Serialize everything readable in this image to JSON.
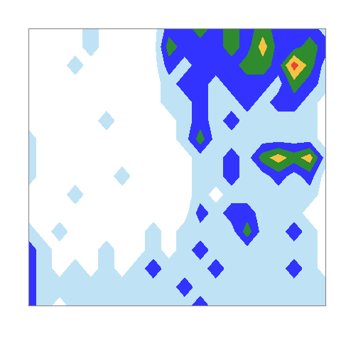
{
  "chart_data": {
    "type": "contour",
    "cells": [
      [
        0,
        0,
        0,
        0,
        1,
        0,
        0,
        0,
        0,
        2,
        2,
        3,
        2,
        3,
        2,
        3,
        2,
        2,
        2,
        1
      ],
      [
        0,
        0,
        0,
        0,
        1,
        0,
        0,
        0,
        0,
        3,
        2,
        2,
        2,
        3,
        2,
        4,
        2,
        2,
        3,
        2
      ],
      [
        0,
        0,
        0,
        1,
        0,
        0,
        0,
        0,
        0,
        2,
        1,
        2,
        2,
        2,
        3,
        3,
        2,
        5,
        3,
        1
      ],
      [
        0,
        0,
        0,
        0,
        0,
        0,
        0,
        0,
        0,
        1,
        2,
        2,
        1,
        2,
        2,
        2,
        1,
        3,
        2,
        1
      ],
      [
        0,
        0,
        0,
        0,
        0,
        0,
        0,
        0,
        0,
        1,
        1,
        2,
        1,
        1,
        2,
        1,
        2,
        2,
        1,
        0
      ],
      [
        0,
        0,
        0,
        0,
        0,
        1,
        0,
        0,
        0,
        0,
        1,
        2,
        1,
        2,
        1,
        1,
        1,
        1,
        1,
        0
      ],
      [
        1,
        0,
        0,
        0,
        0,
        0,
        0,
        0,
        0,
        0,
        1,
        3,
        1,
        1,
        1,
        1,
        1,
        1,
        1,
        0
      ],
      [
        1,
        0,
        0,
        0,
        0,
        0,
        0,
        0,
        0,
        0,
        0,
        1,
        1,
        2,
        1,
        3,
        4,
        3,
        4,
        1
      ],
      [
        1,
        0,
        0,
        0,
        0,
        0,
        1,
        0,
        0,
        0,
        0,
        1,
        1,
        2,
        1,
        1,
        2,
        1,
        2,
        0
      ],
      [
        0,
        0,
        0,
        1,
        0,
        0,
        0,
        0,
        0,
        0,
        0,
        1,
        0,
        1,
        1,
        1,
        1,
        1,
        1,
        0
      ],
      [
        0,
        0,
        0,
        0,
        0,
        0,
        0,
        0,
        0,
        0,
        0,
        2,
        1,
        2,
        2,
        1,
        1,
        1,
        0,
        0
      ],
      [
        1,
        0,
        1,
        0,
        0,
        0,
        0,
        0,
        1,
        0,
        1,
        1,
        1,
        1,
        3,
        1,
        1,
        2,
        1,
        0
      ],
      [
        2,
        1,
        0,
        0,
        0,
        1,
        0,
        0,
        1,
        0,
        1,
        2,
        1,
        1,
        1,
        1,
        1,
        1,
        1,
        0
      ],
      [
        2,
        1,
        0,
        1,
        0,
        1,
        0,
        1,
        2,
        1,
        1,
        1,
        2,
        1,
        1,
        1,
        1,
        2,
        1,
        0
      ],
      [
        2,
        1,
        1,
        1,
        1,
        1,
        1,
        1,
        1,
        1,
        2,
        1,
        1,
        1,
        1,
        1,
        1,
        1,
        1,
        1
      ],
      [
        2,
        1,
        0,
        1,
        1,
        1,
        1,
        1,
        1,
        1,
        1,
        2,
        1,
        1,
        1,
        1,
        1,
        1,
        1,
        1
      ]
    ],
    "levels": [
      0.5,
      1.5,
      2.5,
      3.5,
      4.5,
      5.5
    ],
    "colors": [
      "#bfe3f5",
      "#3333ff",
      "#2e8b2e",
      "#f5c242",
      "#e8443a"
    ],
    "tick_labels": false
  }
}
